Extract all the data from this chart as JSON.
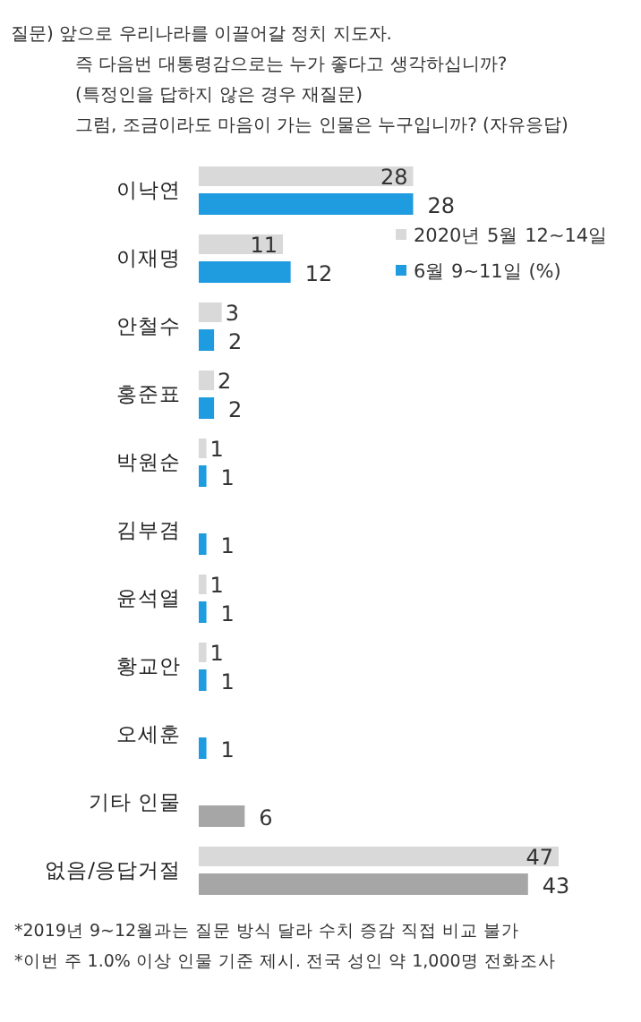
{
  "chart_data": {
    "type": "bar",
    "orientation": "horizontal",
    "title": "질문) 앞으로 우리나라를 이끌어갈 정치 지도자.\n즉 다음번 대통령감으로는 누가 좋다고 생각하십니까?\n(특정인을 답하지 않은 경우 재질문)\n그럼, 조금이라도 마음이 가는 인물은 누구입니까? (자유응답)",
    "categories": [
      "이낙연",
      "이재명",
      "안철수",
      "홍준표",
      "박원순",
      "김부겸",
      "윤석열",
      "황교안",
      "오세훈",
      "기타 인물",
      "없음/응답거절"
    ],
    "series": [
      {
        "name": "2020년 5월 12~14일",
        "color": "#d9d9d9",
        "values": [
          28,
          11,
          3,
          2,
          1,
          null,
          1,
          1,
          null,
          null,
          47
        ]
      },
      {
        "name": "6월 9~11일 (%)",
        "color": "#1f9be0",
        "colors": [
          "#1f9be0",
          "#1f9be0",
          "#1f9be0",
          "#1f9be0",
          "#1f9be0",
          "#1f9be0",
          "#1f9be0",
          "#1f9be0",
          "#1f9be0",
          "#a6a6a6",
          "#a6a6a6"
        ],
        "values": [
          28,
          12,
          2,
          2,
          1,
          1,
          1,
          1,
          1,
          6,
          43
        ]
      }
    ],
    "data_labels": true,
    "legend": "top right",
    "annotations": [
      "*2019년 9~12월과는 질문 방식 달라 수치 증감 직접 비교 불가",
      "*이번 주 1.0% 이상 인물 기준 제시. 전국 성인 약 1,000명 전화조사"
    ]
  }
}
